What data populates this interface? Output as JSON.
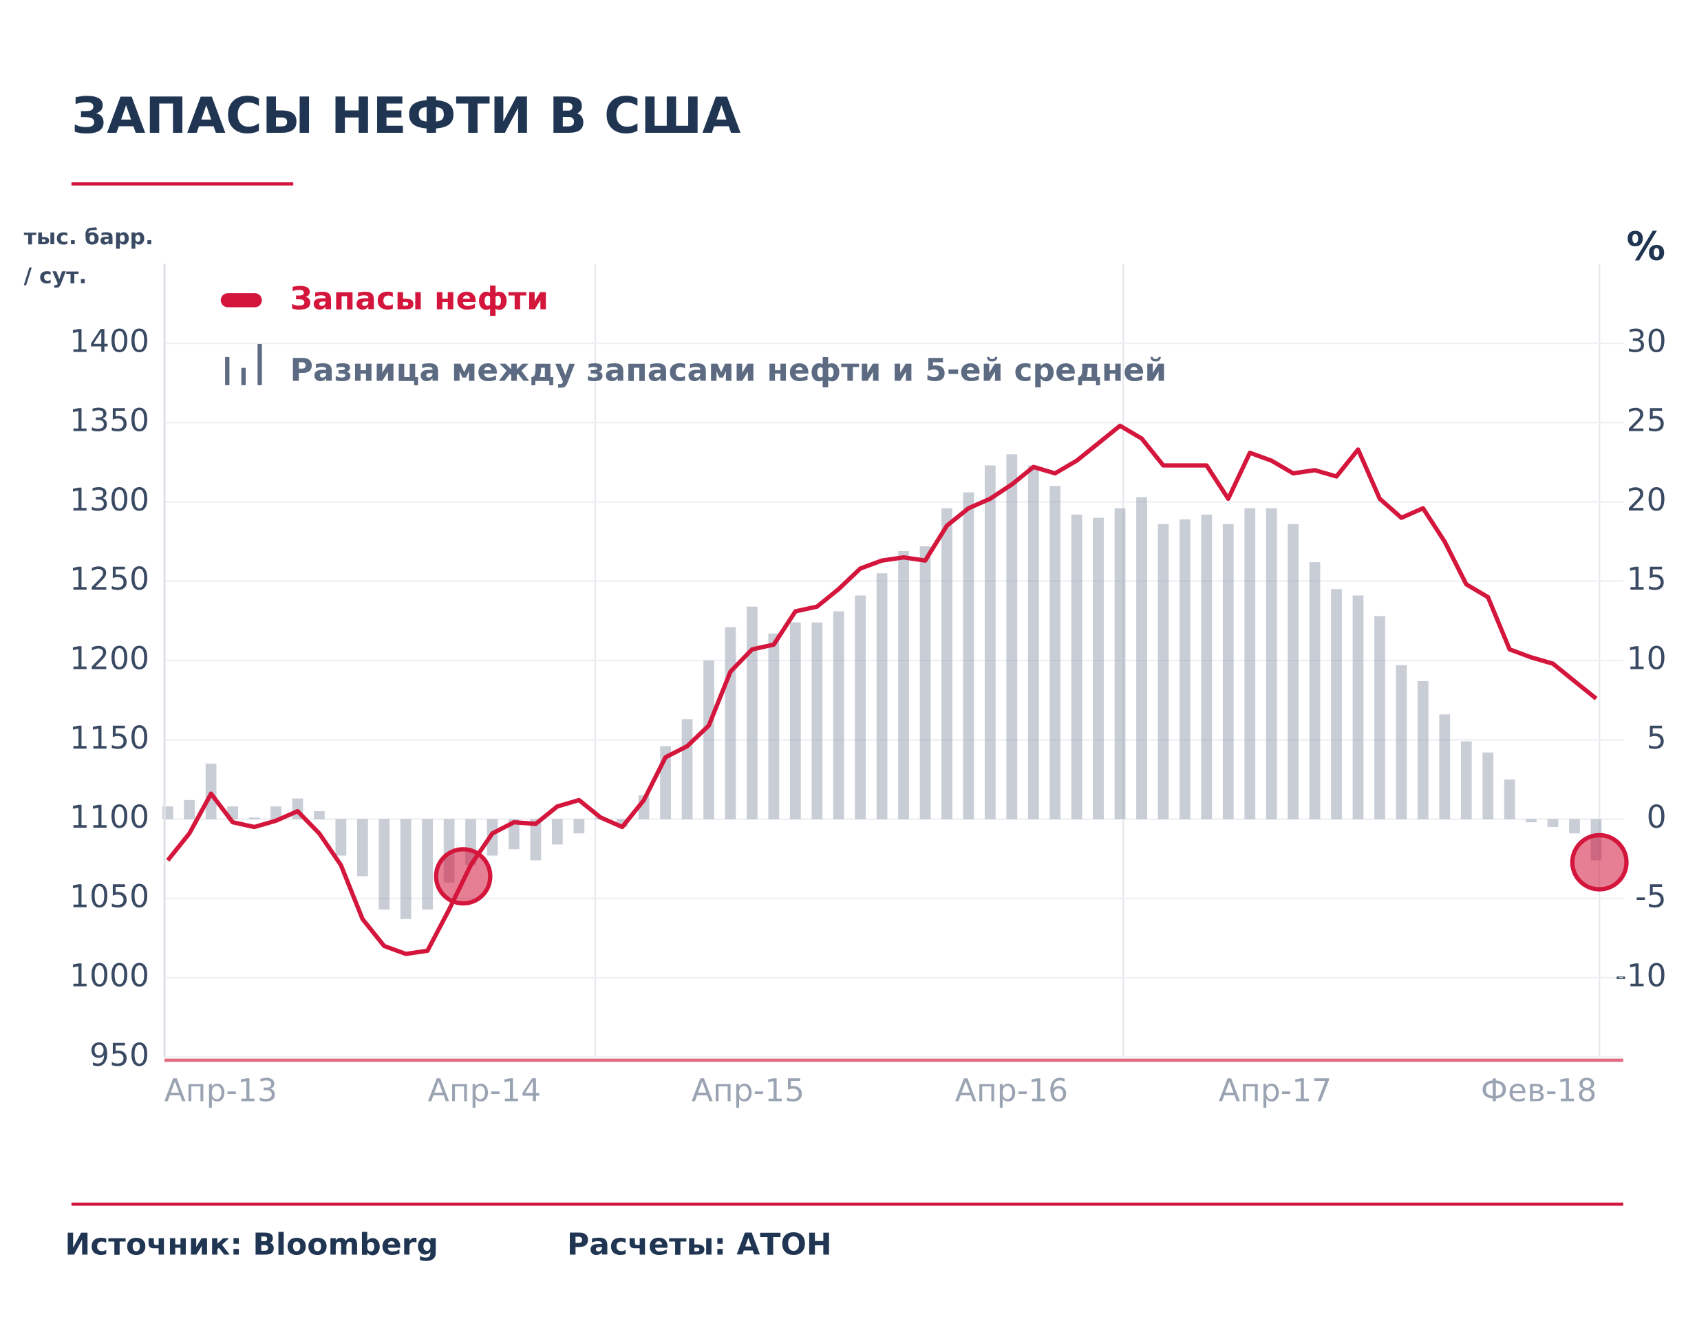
{
  "chart_data": {
    "type": "combo",
    "title": "ЗАПАСЫ НЕФТИ В США",
    "ylabel": [
      "тыс. барр.",
      "/ сут."
    ],
    "y2label": "%",
    "x_labels": [
      "Апр-13",
      "Апр-14",
      "Апр-15",
      "Апр-16",
      "Апр-17",
      "Фев-18"
    ],
    "ylim": [
      950,
      1450
    ],
    "yticks": [
      950,
      1000,
      1050,
      1100,
      1150,
      1200,
      1250,
      1300,
      1350,
      1400
    ],
    "y2lim": [
      -15,
      35
    ],
    "y2ticks": [
      -10,
      -5,
      0,
      5,
      10,
      15,
      20,
      25,
      30
    ],
    "grid": true,
    "series": [
      {
        "name": "Разница между запасами нефти и 5-ей средней",
        "type": "bar",
        "axis": "y2",
        "color": "#9aa4b4",
        "values": [
          0.8,
          1.2,
          3.5,
          0.8,
          0.1,
          0.8,
          1.3,
          0.5,
          -2.3,
          -3.6,
          -5.7,
          -6.3,
          -5.7,
          -4,
          -2.9,
          -2.3,
          -1.9,
          -2.6,
          -1.6,
          -0.9,
          0.1,
          -0.5,
          1.5,
          4.6,
          6.3,
          10,
          12.1,
          13.4,
          11.7,
          12.4,
          12.4,
          13.1,
          14.1,
          15.5,
          16.9,
          17.2,
          19.6,
          20.6,
          22.3,
          23,
          22.3,
          21,
          19.2,
          19,
          19.6,
          20.3,
          18.6,
          18.9,
          19.2,
          18.6,
          19.6,
          19.6,
          18.6,
          16.2,
          14.5,
          14.1,
          12.8,
          9.7,
          8.7,
          6.6,
          4.9,
          4.2,
          2.5,
          -0.2,
          -0.5,
          -0.9,
          -2.6
        ]
      },
      {
        "name": "Запасы нефти",
        "type": "line",
        "color": "#d4163c",
        "values": [
          1074,
          1091,
          1116,
          1098,
          1095,
          1099,
          1105,
          1091,
          1071,
          1037,
          1020,
          1015,
          1017,
          1043,
          1071,
          1091,
          1098,
          1097,
          1108,
          1112,
          1101,
          1095,
          1112,
          1139,
          1146,
          1159,
          1193,
          1207,
          1210,
          1231,
          1234,
          1245,
          1258,
          1263,
          1265,
          1263,
          1285,
          1296,
          1302,
          1311,
          1322,
          1318,
          1326,
          1337,
          1348,
          1340,
          1323,
          1323,
          1323,
          1302,
          1331,
          1326,
          1318,
          1320,
          1316,
          1333,
          1302,
          1290,
          1296,
          1275,
          1248,
          1240,
          1207,
          1202,
          1198,
          1187,
          1176
        ]
      }
    ]
  },
  "footer": {
    "source": "Источник: Bloomberg",
    "calc": "Расчеты: АТОН"
  }
}
